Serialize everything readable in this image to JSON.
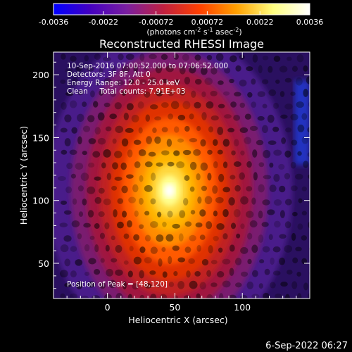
{
  "chart_data": {
    "type": "heatmap",
    "title": "Reconstructed RHESSI Image",
    "xlabel": "Heliocentric X (arcsec)",
    "ylabel": "Heliocentric Y (arcsec)",
    "xlim": [
      -40,
      150
    ],
    "ylim": [
      22,
      218
    ],
    "x_ticks": [
      0,
      50,
      100
    ],
    "x_tick_labels": [
      "0",
      "50",
      "100"
    ],
    "y_ticks": [
      50,
      100,
      150,
      200
    ],
    "y_tick_labels": [
      "50",
      "100",
      "150",
      "200"
    ],
    "colorbar": {
      "range": [
        -0.0036,
        0.0036
      ],
      "ticks": [
        -0.0036,
        -0.0022,
        -0.00072,
        0.00072,
        0.0022,
        0.0036
      ],
      "tick_labels": [
        "-0.0036",
        "-0.0022",
        "-0.00072",
        "0.00072",
        "0.0022",
        "0.0036"
      ],
      "unit_label": "(photons cm",
      "unit_exp1": "-2",
      "unit_mid": " s",
      "unit_exp2": "-1",
      "unit_tail": " asec",
      "unit_exp3": "-2",
      "unit_close": ")",
      "colormap": [
        "#0000ff",
        "#4400c0",
        "#7a1fa0",
        "#c02040",
        "#ff4000",
        "#ffa000",
        "#ffff80",
        "#ffffff"
      ]
    },
    "peak": {
      "x": 48,
      "y": 120
    },
    "annotations": [
      "10-Sep-2016 07:00:52.000 to 07:06:52.000",
      "Detectors: 3F 8F, Att 0",
      "Energy Range: 12.0 - 25.0 keV",
      "Clean     Total counts: 7.91E+03"
    ],
    "peak_label": "Position of Peak = [48,120]"
  },
  "footer": {
    "timestamp": "6-Sep-2022 06:27"
  }
}
